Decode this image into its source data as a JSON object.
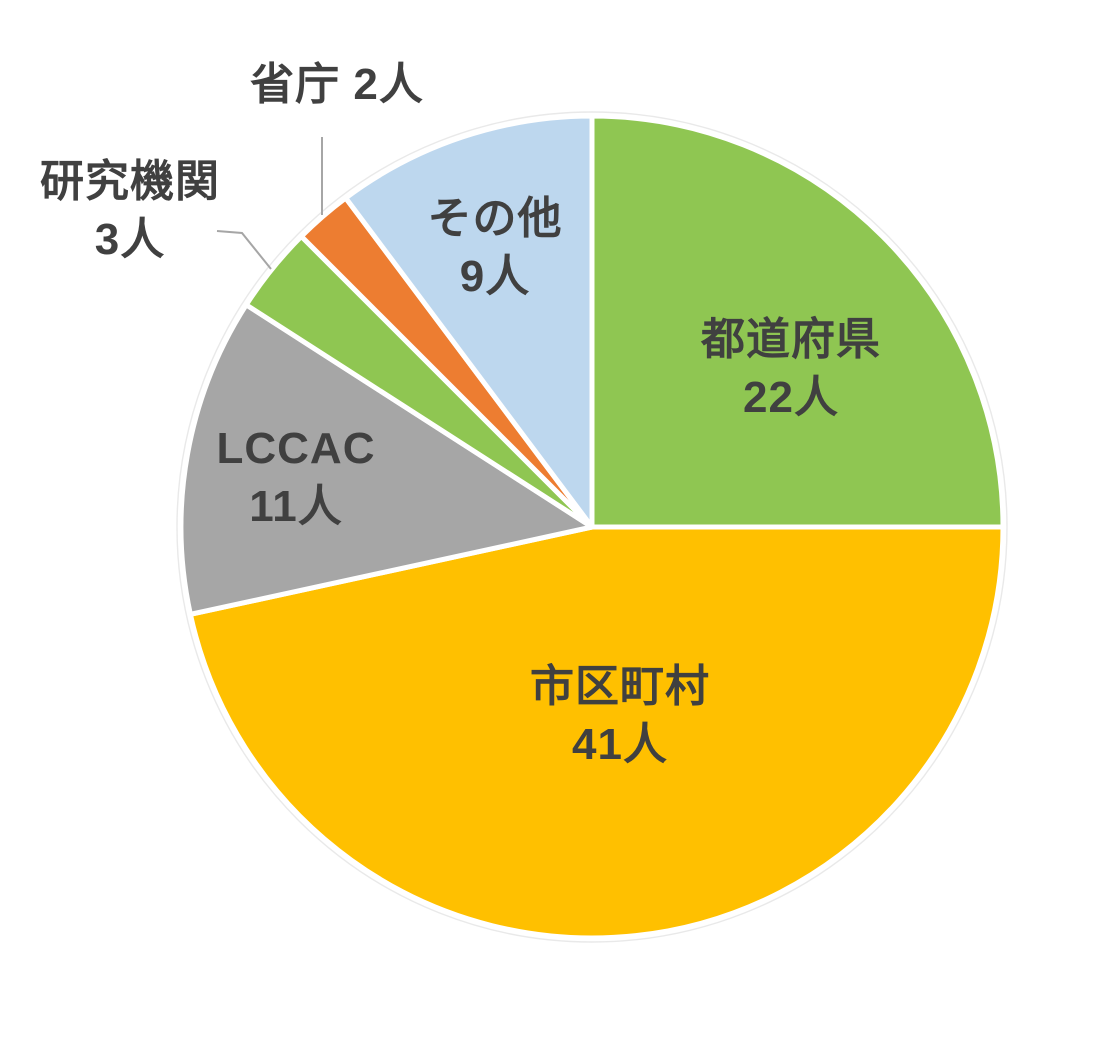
{
  "chart_data": {
    "type": "pie",
    "unit": "人",
    "total": 88,
    "start_angle_deg": 0,
    "direction": "clockwise",
    "background_color": "#FFFFFF",
    "label_color": "#404040",
    "separator_color": "#FFFFFF",
    "leader_line_color": "#A6A6A6",
    "legend": "none",
    "slices": [
      {
        "key": "prefectures",
        "label": "都道府県",
        "value": 22,
        "value_text": "22人",
        "display_text": "都道府県\n22人",
        "color": "#8FC652",
        "label_placement": "inside",
        "leader_line": false
      },
      {
        "key": "municipalities",
        "label": "市区町村",
        "value": 41,
        "value_text": "41人",
        "display_text": "市区町村\n41人",
        "color": "#FFC000",
        "label_placement": "inside",
        "leader_line": false
      },
      {
        "key": "lccac",
        "label": "LCCAC",
        "value": 11,
        "value_text": "11人",
        "display_text": "LCCAC\n11人",
        "color": "#A6A6A6",
        "label_placement": "inside",
        "leader_line": false
      },
      {
        "key": "research-institutes",
        "label": "研究機関",
        "value": 3,
        "value_text": "3人",
        "display_text": "研究機関\n3人",
        "color": "#8FC652",
        "label_placement": "outside",
        "leader_line": true
      },
      {
        "key": "ministries",
        "label": "省庁",
        "value": 2,
        "value_text": "2人",
        "display_text": "省庁 2人",
        "color": "#ED7D31",
        "label_placement": "outside",
        "leader_line": true
      },
      {
        "key": "others",
        "label": "その他",
        "value": 9,
        "value_text": "9人",
        "display_text": "その他\n9人",
        "color": "#BDD7EE",
        "label_placement": "inside",
        "leader_line": false
      }
    ]
  }
}
